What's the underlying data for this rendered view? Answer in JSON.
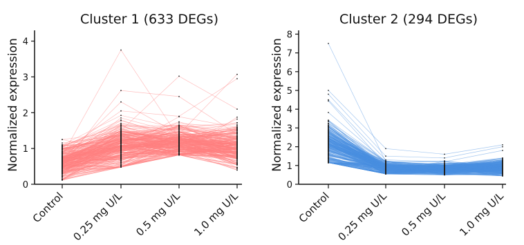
{
  "chart_data": [
    {
      "type": "line",
      "title": "Cluster 1 (633 DEGs)",
      "ylabel": "Normalized expression",
      "xlabel": "",
      "categories": [
        "Control",
        "0.25 mg U/L",
        "0.5 mg U/L",
        "1.0 mg U/L"
      ],
      "ylim": [
        0,
        4.3
      ],
      "yticks": [
        0,
        1,
        2,
        3,
        4
      ],
      "color": "#ff7f7f",
      "grid": false,
      "gene_count": 633,
      "series_summary": {
        "mean": [
          0.62,
          1.08,
          1.15,
          1.05
        ],
        "min": [
          0.12,
          0.48,
          0.82,
          0.4
        ],
        "max": [
          1.25,
          3.75,
          3.02,
          3.07
        ]
      },
      "outlier_profiles": [
        [
          0.8,
          3.75,
          1.3,
          1.1
        ],
        [
          0.5,
          2.62,
          2.45,
          1.4
        ],
        [
          0.7,
          2.3,
          1.4,
          3.07
        ],
        [
          0.6,
          1.5,
          3.02,
          2.1
        ],
        [
          0.9,
          2.05,
          1.9,
          2.95
        ],
        [
          0.3,
          0.48,
          1.0,
          0.6
        ]
      ]
    },
    {
      "type": "line",
      "title": "Cluster 2 (294 DEGs)",
      "ylabel": "Normalized expression",
      "xlabel": "",
      "categories": [
        "Control",
        "0.25 mg U/L",
        "0.5 mg U/L",
        "1.0 mg U/L"
      ],
      "ylim": [
        0,
        8.2
      ],
      "yticks": [
        0,
        1,
        2,
        3,
        4,
        5,
        6,
        7,
        8
      ],
      "color": "#4a90e2",
      "grid": false,
      "gene_count": 294,
      "series_summary": {
        "mean": [
          2.1,
          0.85,
          0.82,
          0.9
        ],
        "min": [
          1.15,
          0.55,
          0.5,
          0.45
        ],
        "max": [
          7.5,
          1.9,
          1.6,
          2.1
        ]
      },
      "outlier_profiles": [
        [
          7.5,
          1.2,
          1.0,
          1.3
        ],
        [
          5.0,
          1.9,
          1.6,
          2.1
        ],
        [
          4.8,
          1.5,
          1.4,
          2.0
        ],
        [
          4.5,
          1.3,
          1.2,
          1.8
        ]
      ]
    }
  ]
}
